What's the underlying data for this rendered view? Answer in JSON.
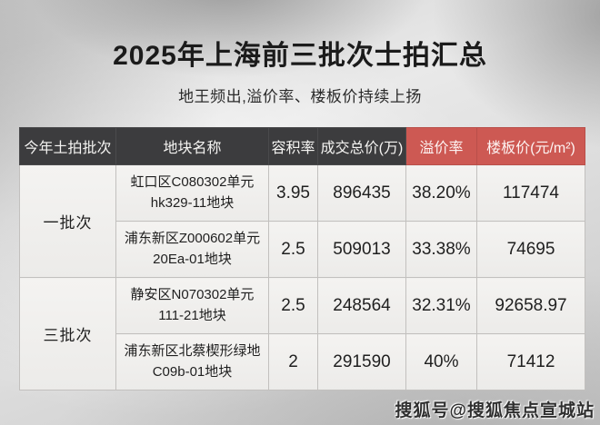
{
  "page": {
    "title": "2025年上海前三批次士拍汇总",
    "subtitle": "地王频出,溢价率、楼板价持续上扬",
    "watermark": "搜狐号@搜狐焦点宣城站"
  },
  "colors": {
    "header_dark": "#3c3c3e",
    "header_red": "#cd5953",
    "value_red": "#9c403e",
    "grid_line": "#c2c0be"
  },
  "table": {
    "headers": [
      "今年土拍批次",
      "地块名称",
      "容积率",
      "成交总价(万)",
      "溢价率",
      "楼板价(元/m²)"
    ],
    "batches": [
      {
        "label": "一批次",
        "rows": [
          {
            "name": "虹口区C080302单元\nhk329-11地块",
            "plot_ratio": "3.95",
            "total_price": "896435",
            "premium_rate": "38.20%",
            "floor_price": "117474"
          },
          {
            "name": "浦东新区Z000602单元\n20Ea-01地块",
            "plot_ratio": "2.5",
            "total_price": "509013",
            "premium_rate": "33.38%",
            "floor_price": "74695"
          }
        ]
      },
      {
        "label": "三批次",
        "rows": [
          {
            "name": "静安区N070302单元\n111-21地块",
            "plot_ratio": "2.5",
            "total_price": "248564",
            "premium_rate": "32.31%",
            "floor_price": "92658.97"
          },
          {
            "name": "浦东新区北蔡楔形绿地\nC09b-01地块",
            "plot_ratio": "2",
            "total_price": "291590",
            "premium_rate": "40%",
            "floor_price": "71412"
          }
        ]
      }
    ]
  },
  "chart_data": {
    "type": "table",
    "title": "2025年上海前三批次士拍汇总",
    "subtitle": "地王频出,溢价率、楼板价持续上扬",
    "columns": [
      "今年土拍批次",
      "地块名称",
      "容积率",
      "成交总价(万)",
      "溢价率",
      "楼板价(元/m²)"
    ],
    "rows": [
      [
        "一批次",
        "虹口区C080302单元 hk329-11地块",
        3.95,
        896435,
        "38.20%",
        117474
      ],
      [
        "一批次",
        "浦东新区Z000602单元 20Ea-01地块",
        2.5,
        509013,
        "33.38%",
        74695
      ],
      [
        "三批次",
        "静安区N070302单元 111-21地块",
        2.5,
        248564,
        "32.31%",
        92658.97
      ],
      [
        "三批次",
        "浦东新区北蔡楔形绿地 C09b-01地块",
        2,
        291590,
        "40%",
        71412
      ]
    ]
  }
}
